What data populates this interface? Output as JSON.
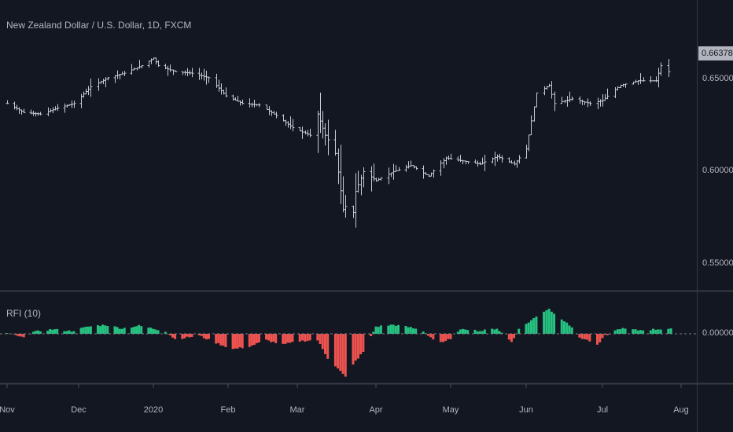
{
  "chart_data": [
    {
      "type": "ohlc",
      "title": "New Zealand Dollar / U.S. Dollar, 1D, FXCM",
      "last_price_label": "0.66378",
      "colors": {
        "background": "#131722",
        "bars": "#c7c9d0",
        "last_price_box": "#b2b5be"
      },
      "y_ticks": [
        "0.65000",
        "0.60000",
        "0.55000"
      ],
      "ylim": [
        0.537,
        0.688
      ],
      "x_ticks": [
        "Nov",
        "Dec",
        "2020",
        "Feb",
        "Mar",
        "Apr",
        "May",
        "Jun",
        "Jul",
        "Aug"
      ],
      "x_tick_dates": [
        "2019-11-01",
        "2019-12-01",
        "2020-01-01",
        "2020-02-01",
        "2020-03-01",
        "2020-04-01",
        "2020-05-01",
        "2020-06-01",
        "2020-07-01",
        "2020-08-01"
      ],
      "close_key_points": [
        [
          "2019-11-01",
          0.643
        ],
        [
          "2019-11-08",
          0.637
        ],
        [
          "2019-11-15",
          0.636
        ],
        [
          "2019-11-22",
          0.64
        ],
        [
          "2019-11-29",
          0.643
        ],
        [
          "2019-12-06",
          0.654
        ],
        [
          "2019-12-13",
          0.66
        ],
        [
          "2019-12-20",
          0.663
        ],
        [
          "2019-12-27",
          0.668
        ],
        [
          "2020-01-01",
          0.673
        ],
        [
          "2020-01-03",
          0.668
        ],
        [
          "2020-01-10",
          0.664
        ],
        [
          "2020-01-17",
          0.663
        ],
        [
          "2020-01-24",
          0.66
        ],
        [
          "2020-01-31",
          0.648
        ],
        [
          "2020-02-07",
          0.643
        ],
        [
          "2020-02-14",
          0.642
        ],
        [
          "2020-02-21",
          0.635
        ],
        [
          "2020-02-28",
          0.627
        ],
        [
          "2020-03-06",
          0.622
        ],
        [
          "2020-03-09",
          0.636
        ],
        [
          "2020-03-12",
          0.622
        ],
        [
          "2020-03-16",
          0.61
        ],
        [
          "2020-03-19",
          0.573
        ],
        [
          "2020-03-20",
          0.575
        ],
        [
          "2020-03-23",
          0.571
        ],
        [
          "2020-03-24",
          0.585
        ],
        [
          "2020-03-27",
          0.598
        ],
        [
          "2020-04-01",
          0.592
        ],
        [
          "2020-04-08",
          0.598
        ],
        [
          "2020-04-15",
          0.602
        ],
        [
          "2020-04-22",
          0.595
        ],
        [
          "2020-04-29",
          0.607
        ],
        [
          "2020-05-06",
          0.605
        ],
        [
          "2020-05-13",
          0.603
        ],
        [
          "2020-05-20",
          0.608
        ],
        [
          "2020-05-27",
          0.603
        ],
        [
          "2020-06-01",
          0.613
        ],
        [
          "2020-06-05",
          0.65
        ],
        [
          "2020-06-10",
          0.655
        ],
        [
          "2020-06-12",
          0.643
        ],
        [
          "2020-06-19",
          0.646
        ],
        [
          "2020-06-26",
          0.643
        ],
        [
          "2020-07-01",
          0.645
        ],
        [
          "2020-07-08",
          0.655
        ],
        [
          "2020-07-15",
          0.658
        ],
        [
          "2020-07-22",
          0.658
        ],
        [
          "2020-07-24",
          0.668
        ],
        [
          "2020-07-27",
          0.664
        ]
      ]
    },
    {
      "type": "histogram",
      "title": "RFI (10)",
      "y_ticks": [
        "0.00000"
      ],
      "zero_line": 0,
      "colors": {
        "positive": "#26c281",
        "negative": "#ef5350",
        "zero_line": "#787b86"
      },
      "value_key_points": [
        [
          "2019-11-01",
          0.01
        ],
        [
          "2019-11-07",
          -0.04
        ],
        [
          "2019-11-12",
          0.02
        ],
        [
          "2019-11-20",
          0.05
        ],
        [
          "2019-11-28",
          0.03
        ],
        [
          "2019-12-05",
          0.08
        ],
        [
          "2019-12-12",
          0.1
        ],
        [
          "2019-12-19",
          0.06
        ],
        [
          "2019-12-26",
          0.09
        ],
        [
          "2020-01-06",
          0.03
        ],
        [
          "2020-01-10",
          -0.06
        ],
        [
          "2020-01-20",
          -0.02
        ],
        [
          "2020-01-27",
          -0.1
        ],
        [
          "2020-02-03",
          -0.17
        ],
        [
          "2020-02-10",
          -0.14
        ],
        [
          "2020-02-17",
          -0.07
        ],
        [
          "2020-02-24",
          -0.12
        ],
        [
          "2020-03-02",
          -0.08
        ],
        [
          "2020-03-09",
          -0.07
        ],
        [
          "2020-03-13",
          -0.27
        ],
        [
          "2020-03-17",
          -0.38
        ],
        [
          "2020-03-20",
          -0.48
        ],
        [
          "2020-03-24",
          -0.3
        ],
        [
          "2020-03-27",
          -0.2
        ],
        [
          "2020-04-01",
          0.08
        ],
        [
          "2020-04-08",
          0.1
        ],
        [
          "2020-04-15",
          0.07
        ],
        [
          "2020-04-20",
          0.03
        ],
        [
          "2020-04-24",
          -0.06
        ],
        [
          "2020-04-28",
          -0.1
        ],
        [
          "2020-05-01",
          -0.05
        ],
        [
          "2020-05-06",
          0.06
        ],
        [
          "2020-05-13",
          0.03
        ],
        [
          "2020-05-20",
          0.06
        ],
        [
          "2020-05-26",
          -0.09
        ],
        [
          "2020-05-29",
          0.05
        ],
        [
          "2020-06-03",
          0.15
        ],
        [
          "2020-06-08",
          0.25
        ],
        [
          "2020-06-10",
          0.28
        ],
        [
          "2020-06-12",
          0.22
        ],
        [
          "2020-06-17",
          0.13
        ],
        [
          "2020-06-22",
          -0.04
        ],
        [
          "2020-06-26",
          -0.08
        ],
        [
          "2020-06-29",
          -0.13
        ],
        [
          "2020-07-02",
          -0.02
        ],
        [
          "2020-07-08",
          0.06
        ],
        [
          "2020-07-15",
          0.04
        ],
        [
          "2020-07-22",
          0.05
        ],
        [
          "2020-07-28",
          0.06
        ]
      ]
    }
  ]
}
